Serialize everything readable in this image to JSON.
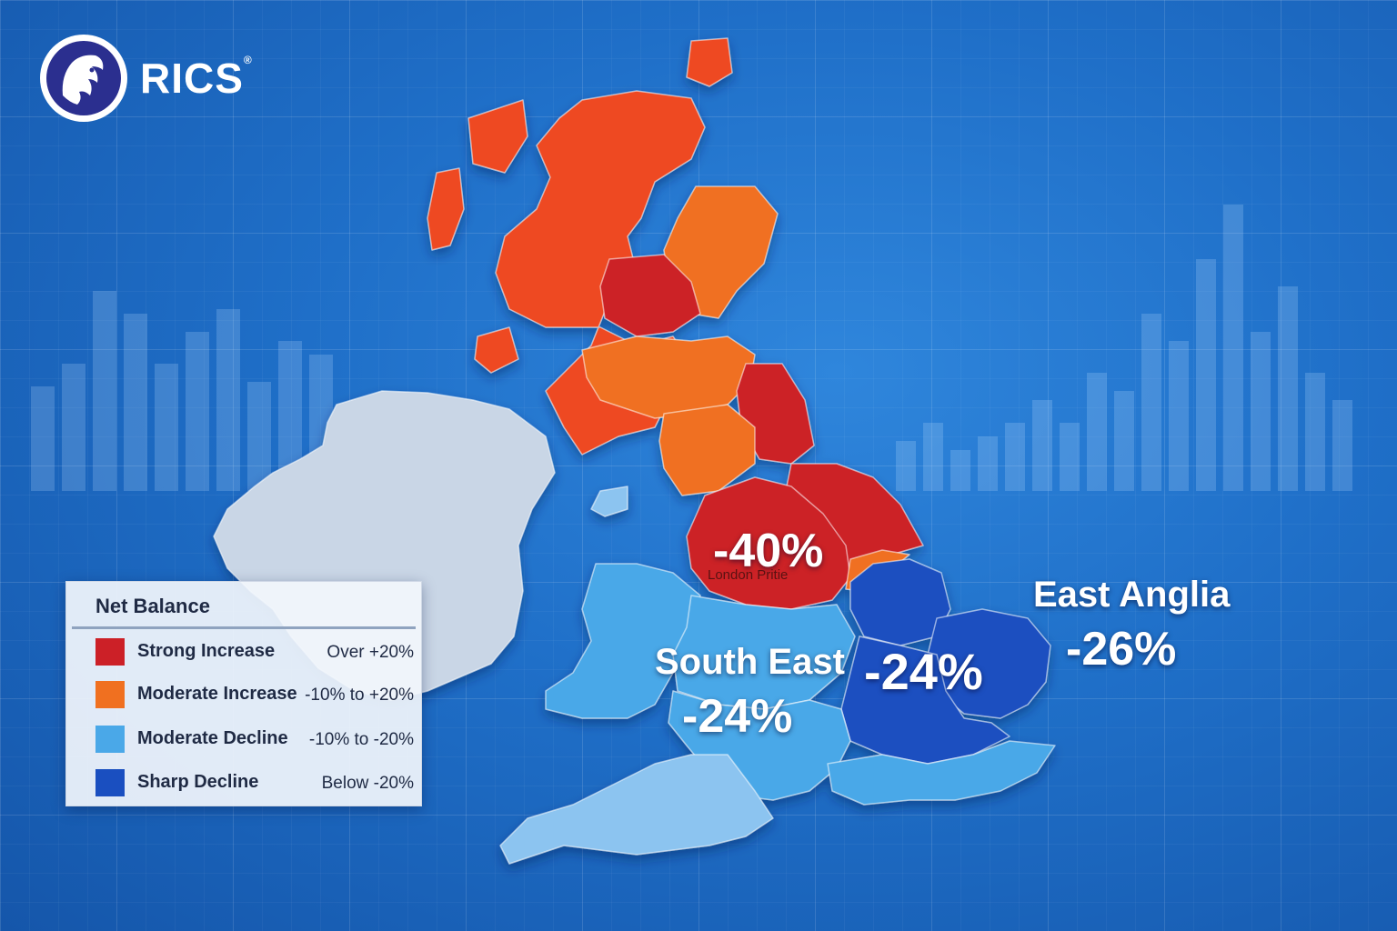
{
  "brand": {
    "name": "RICS",
    "reg_mark": "®",
    "icon": "lion-head-icon"
  },
  "labels": {
    "london_pct": "-40%",
    "london_caption": "London Pritie",
    "south_east_name": "South East",
    "south_east_pct": "-24%",
    "center_pct": "-24%",
    "east_anglia_name": "East Anglia",
    "east_anglia_pct": "-26%"
  },
  "legend": {
    "title": "Net Balance",
    "items": [
      {
        "label": "Strong Increase",
        "range": "Over +20%",
        "color": "#cc2027"
      },
      {
        "label": "Moderate Increase",
        "range": "-10% to +20%",
        "color": "#f07020"
      },
      {
        "label": "Moderate Decline",
        "range": "-10% to -20%",
        "color": "#4aa8e8"
      },
      {
        "label": "Sharp Decline",
        "range": "Below -20%",
        "color": "#1a4fc0"
      }
    ]
  },
  "colors": {
    "background": "#1f6fc8",
    "ireland": "#c9d6e6",
    "scotland": "#ee4a22",
    "strong_increase": "#cc2027",
    "moderate_increase": "#f07020",
    "moderate_decline": "#4aa8e8",
    "light_decline": "#8cc4f0",
    "sharp_decline": "#1a4fc0"
  }
}
